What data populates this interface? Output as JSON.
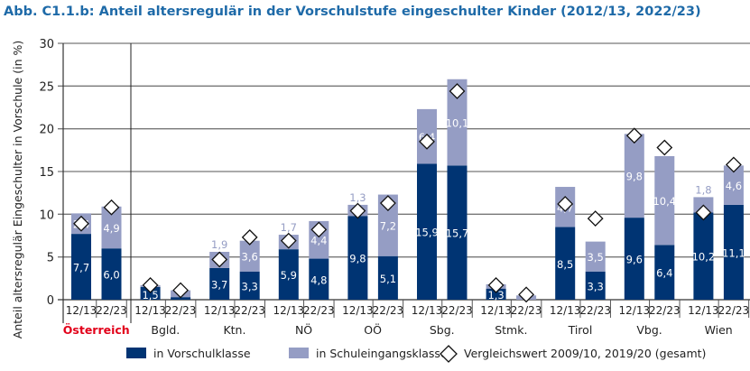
{
  "title": "Abb. C1.1.b: Anteil altersregulär in der Vorschulstufe eingeschulter Kinder (2012/13, 2022/23)",
  "chart_data": {
    "type": "bar",
    "stacked": true,
    "ylabel": "Anteil altersregulär Eingeschulter in Vorschule (in %)",
    "ylim": [
      0,
      30
    ],
    "yticks": [
      0,
      5,
      10,
      15,
      20,
      25,
      30
    ],
    "grid": true,
    "legend_position": "bottom",
    "groups": [
      "Österreich",
      "Bgld.",
      "Ktn.",
      "NÖ",
      "OÖ",
      "Sbg.",
      "Stmk.",
      "Tirol",
      "Vbg.",
      "Wien"
    ],
    "highlight_group_color": "#e2001a",
    "periods": [
      "12/13",
      "22/23"
    ],
    "series": [
      {
        "name": "in Vorschulklasse",
        "color": "#003473",
        "values": [
          [
            7.7,
            6.0
          ],
          [
            1.5,
            0.3
          ],
          [
            3.7,
            3.3
          ],
          [
            5.9,
            4.8
          ],
          [
            9.8,
            5.1
          ],
          [
            15.9,
            15.7
          ],
          [
            1.3,
            0.0
          ],
          [
            8.5,
            3.3
          ],
          [
            9.6,
            6.4
          ],
          [
            10.2,
            11.1
          ]
        ],
        "labels": [
          [
            "7,7",
            "6,0"
          ],
          [
            "1,5",
            ""
          ],
          [
            "3,7",
            "3,3"
          ],
          [
            "5,9",
            "4,8"
          ],
          [
            "9,8",
            "5,1"
          ],
          [
            "15,9",
            "15,7"
          ],
          [
            "1,3",
            ""
          ],
          [
            "8,5",
            "3,3"
          ],
          [
            "9,6",
            "6,4"
          ],
          [
            "10,2",
            "11,1"
          ]
        ]
      },
      {
        "name": "in Schuleingangsklasse",
        "color": "#959dc4",
        "values": [
          [
            2.4,
            4.9
          ],
          [
            0.2,
            0.8
          ],
          [
            1.9,
            3.6
          ],
          [
            1.7,
            4.4
          ],
          [
            1.3,
            7.2
          ],
          [
            6.4,
            10.1
          ],
          [
            0.5,
            0.5
          ],
          [
            4.7,
            3.5
          ],
          [
            9.8,
            10.4
          ],
          [
            1.8,
            4.6
          ]
        ],
        "labels": [
          [
            "2,4",
            "4,9"
          ],
          [
            "",
            ""
          ],
          [
            "1,9",
            "3,6"
          ],
          [
            "1,7",
            "4,4"
          ],
          [
            "1,3",
            "7,2"
          ],
          [
            "6,4",
            "10,1"
          ],
          [
            "",
            ""
          ],
          [
            "4,7",
            "3,5"
          ],
          [
            "9,8",
            "10,4"
          ],
          [
            "1,8",
            "4,6"
          ]
        ]
      }
    ],
    "markers": {
      "name": "Vergleichswert 2009/10, 2019/20 (gesamt)",
      "shape": "diamond",
      "values": [
        [
          8.9,
          10.8
        ],
        [
          1.7,
          1.1
        ],
        [
          4.7,
          7.3
        ],
        [
          6.9,
          8.2
        ],
        [
          10.4,
          11.3
        ],
        [
          18.5,
          24.4
        ],
        [
          1.7,
          0.6
        ],
        [
          11.2,
          9.5
        ],
        [
          19.2,
          17.8
        ],
        [
          10.2,
          15.8
        ]
      ]
    }
  }
}
